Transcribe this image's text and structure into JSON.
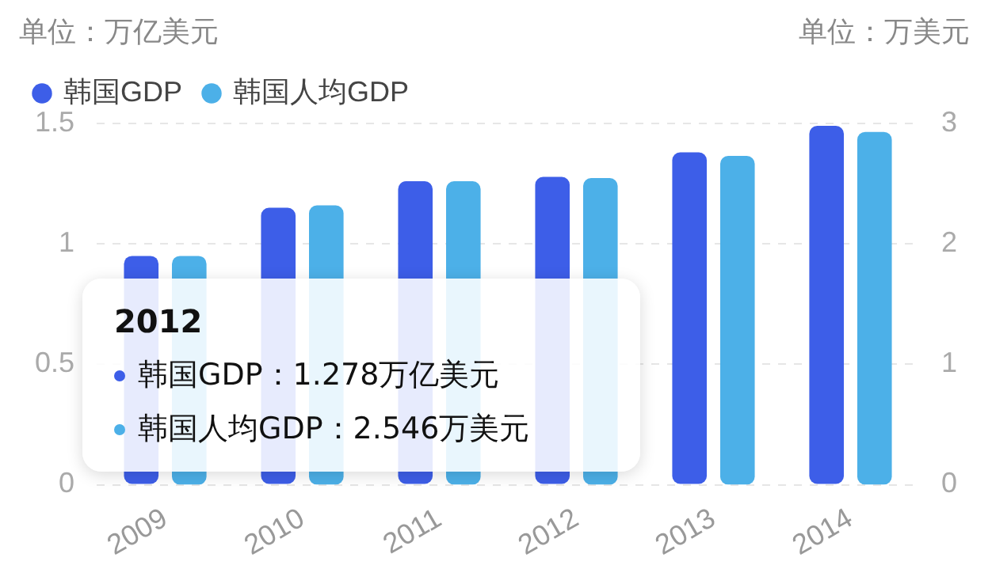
{
  "chart_data": {
    "type": "bar",
    "ylabel": "单位：万亿美元",
    "y2label": "单位：万美元",
    "categories": [
      "2009",
      "2010",
      "2011",
      "2012",
      "2013",
      "2014"
    ],
    "series": [
      {
        "name": "韩国GDP",
        "color": "#3d5ee8",
        "values": [
          0.95,
          1.15,
          1.26,
          1.278,
          1.38,
          1.49
        ]
      },
      {
        "name": "韩国人均GDP",
        "color": "#4cb0e8",
        "axis": "y2",
        "values": [
          1.9,
          2.32,
          2.52,
          2.546,
          2.73,
          2.93
        ]
      }
    ],
    "ylim": [
      0,
      1.5
    ],
    "yticks": [
      0,
      0.5,
      1,
      1.5
    ],
    "y2lim": [
      0,
      3
    ],
    "y2ticks": [
      0,
      1,
      2,
      3
    ],
    "grid": "y",
    "legend": "top left",
    "marker": "circle",
    "annotations": [
      "2012",
      "韩国GDP：1.278万亿美元",
      "韩国人均GDP：2.546万美元"
    ]
  }
}
